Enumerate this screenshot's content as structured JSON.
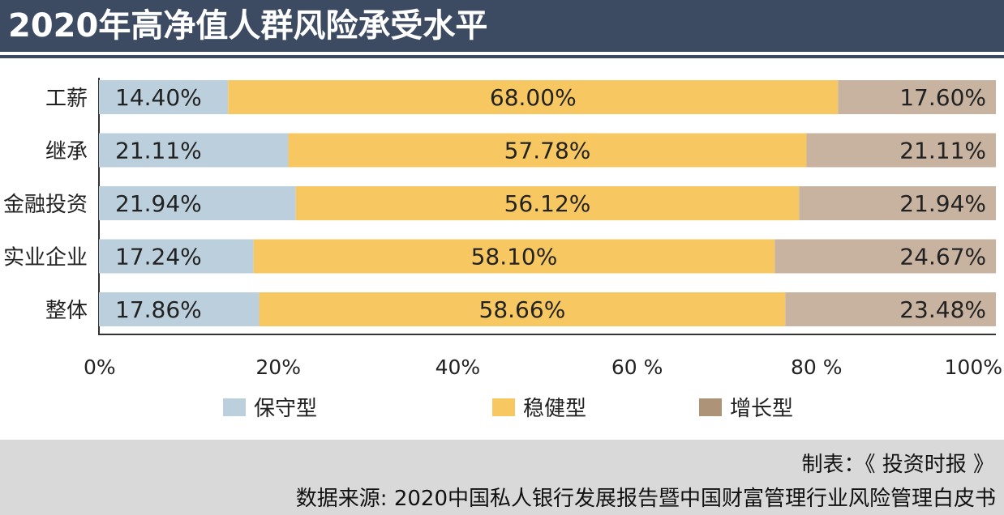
{
  "title": "2020年高净值人群风险承受水平",
  "chart_data": {
    "type": "bar",
    "orientation": "horizontal",
    "stacked": true,
    "categories": [
      "工薪",
      "继承",
      "金融投资",
      "实业企业",
      "整体"
    ],
    "series": [
      {
        "name": "保守型",
        "values": [
          14.4,
          21.11,
          21.94,
          17.24,
          17.86
        ],
        "labels": [
          "14.40%",
          "21.11%",
          "21.94%",
          "17.24%",
          "17.86%"
        ],
        "color": "#bccfdc"
      },
      {
        "name": "稳健型",
        "values": [
          68.0,
          57.78,
          56.12,
          58.1,
          58.66
        ],
        "labels": [
          "68.00%",
          "57.78%",
          "56.12%",
          "58.10%",
          "58.66%"
        ],
        "color": "#f7c862"
      },
      {
        "name": "增长型",
        "values": [
          17.6,
          21.11,
          21.94,
          24.67,
          23.48
        ],
        "labels": [
          "17.60%",
          "21.11%",
          "21.94%",
          "24.67%",
          "23.48%"
        ],
        "color": "#c7b3a0"
      }
    ],
    "xlim": [
      0,
      100
    ],
    "x_ticks": [
      "0%",
      "20%",
      "40%",
      "60 %",
      "80 %",
      "100%"
    ],
    "grid": false,
    "legend_position": "bottom"
  },
  "footer": {
    "credit": "制表：《 投资时报 》",
    "source": "数据来源: 2020中国私人银行发展报告暨中国财富管理行业风险管理白皮书"
  },
  "colors": {
    "title_bar": "#3d4b62",
    "footer_bg": "#d9d9d9",
    "legend_growth_swatch": "#ad9478"
  }
}
